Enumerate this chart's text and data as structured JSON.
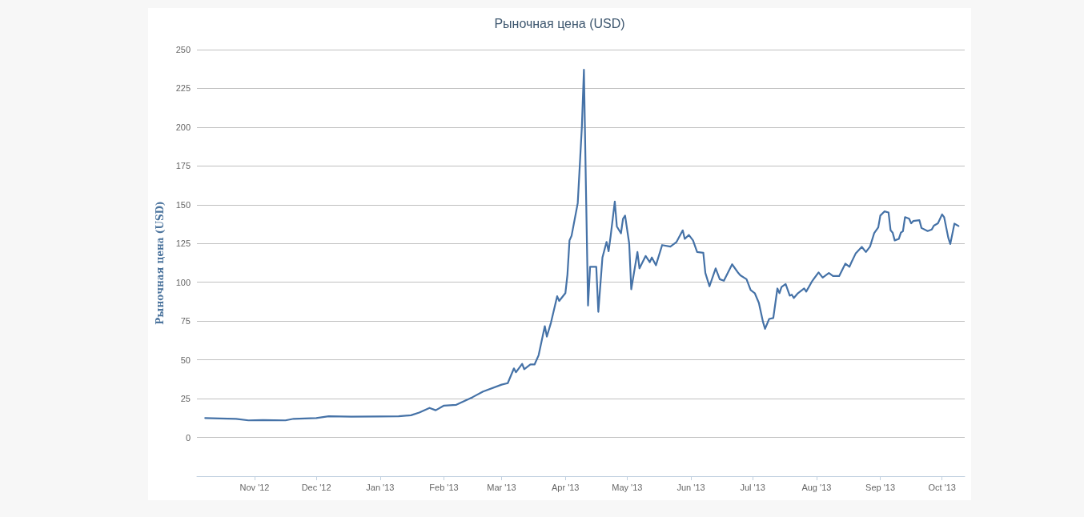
{
  "chart_data": {
    "type": "line",
    "title": "Рыночная цена (USD)",
    "ylabel": "Рыночная цена (USD)",
    "color": "#4572a7",
    "grid": "y",
    "line_style": "solid",
    "x": [
      "2012-10-08",
      "2012-10-15",
      "2012-10-23",
      "2012-10-29",
      "2012-11-05",
      "2012-11-16",
      "2012-11-20",
      "2012-12-01",
      "2012-12-07",
      "2012-12-18",
      "2013-01-01",
      "2013-01-10",
      "2013-01-16",
      "2013-01-20",
      "2013-01-25",
      "2013-01-28",
      "2013-02-01",
      "2013-02-07",
      "2013-02-15",
      "2013-02-20",
      "2013-03-01",
      "2013-03-04",
      "2013-03-07",
      "2013-03-08",
      "2013-03-11",
      "2013-03-12",
      "2013-03-15",
      "2013-03-17",
      "2013-03-19",
      "2013-03-22",
      "2013-03-23",
      "2013-03-25",
      "2013-03-28",
      "2013-03-29",
      "2013-04-01",
      "2013-04-02",
      "2013-04-03",
      "2013-04-04",
      "2013-04-07",
      "2013-04-09",
      "2013-04-10",
      "2013-04-11",
      "2013-04-12",
      "2013-04-13",
      "2013-04-16",
      "2013-04-17",
      "2013-04-19",
      "2013-04-21",
      "2013-04-22",
      "2013-04-23",
      "2013-04-25",
      "2013-04-26",
      "2013-04-28",
      "2013-04-29",
      "2013-04-30",
      "2013-05-02",
      "2013-05-03",
      "2013-05-06",
      "2013-05-07",
      "2013-05-10",
      "2013-05-12",
      "2013-05-13",
      "2013-05-15",
      "2013-05-18",
      "2013-05-22",
      "2013-05-25",
      "2013-05-28",
      "2013-05-29",
      "2013-05-31",
      "2013-06-02",
      "2013-06-04",
      "2013-06-07",
      "2013-06-08",
      "2013-06-10",
      "2013-06-13",
      "2013-06-15",
      "2013-06-17",
      "2013-06-21",
      "2013-06-24",
      "2013-06-25",
      "2013-06-28",
      "2013-06-30",
      "2013-07-02",
      "2013-07-04",
      "2013-07-06",
      "2013-07-07",
      "2013-07-09",
      "2013-07-11",
      "2013-07-13",
      "2013-07-14",
      "2013-07-15",
      "2013-07-17",
      "2013-07-19",
      "2013-07-20",
      "2013-07-21",
      "2013-07-23",
      "2013-07-26",
      "2013-07-27",
      "2013-07-30",
      "2013-08-02",
      "2013-08-04",
      "2013-08-07",
      "2013-08-09",
      "2013-08-12",
      "2013-08-15",
      "2013-08-17",
      "2013-08-18",
      "2013-08-20",
      "2013-08-23",
      "2013-08-25",
      "2013-08-27",
      "2013-08-29",
      "2013-08-31",
      "2013-09-01",
      "2013-09-03",
      "2013-09-05",
      "2013-09-06",
      "2013-09-07",
      "2013-09-08",
      "2013-09-10",
      "2013-09-11",
      "2013-09-12",
      "2013-09-13",
      "2013-09-15",
      "2013-09-16",
      "2013-09-17",
      "2013-09-20",
      "2013-09-21",
      "2013-09-24",
      "2013-09-26",
      "2013-09-27",
      "2013-09-29",
      "2013-10-01",
      "2013-10-02",
      "2013-10-04",
      "2013-10-05",
      "2013-10-07",
      "2013-10-09"
    ],
    "values": [
      12.5,
      12.2,
      12,
      11,
      11.2,
      11,
      12,
      12.5,
      13.6,
      13.4,
      13.5,
      13.6,
      14.3,
      16,
      19,
      17.5,
      20.5,
      21,
      26,
      29.6,
      34,
      35,
      44.5,
      42,
      47.4,
      44,
      47,
      47,
      53,
      71.7,
      65,
      74,
      91,
      88,
      93,
      105,
      127,
      130,
      151,
      200,
      237,
      160,
      85,
      110,
      110,
      81,
      116,
      126,
      120,
      130,
      152,
      136,
      131.6,
      141,
      143,
      125,
      95.5,
      119.5,
      109,
      117,
      113,
      116,
      111,
      124,
      123,
      126,
      133.5,
      128,
      130.5,
      127,
      119.5,
      119,
      106,
      97.4,
      109,
      102,
      101,
      111.6,
      106,
      104.5,
      102,
      95,
      93,
      86.7,
      74.5,
      70,
      76.4,
      77,
      96,
      93,
      97,
      98.9,
      91.4,
      92,
      89.9,
      93,
      96,
      94,
      101,
      106.4,
      103,
      106,
      104,
      104,
      112,
      110,
      113,
      118.5,
      122.8,
      119.5,
      123,
      131.6,
      135.4,
      143,
      145.7,
      145,
      133.5,
      132,
      127,
      128,
      132,
      133,
      142,
      141,
      138,
      139.5,
      140,
      135,
      133,
      134,
      136.5,
      138,
      143.8,
      142,
      128.8,
      124.7,
      137.8,
      136.3
    ],
    "xlim": [
      "2012-10-04",
      "2013-10-12"
    ],
    "xticks": [
      {
        "value": "2012-11-01",
        "label": "Nov '12"
      },
      {
        "value": "2012-12-01",
        "label": "Dec '12"
      },
      {
        "value": "2013-01-01",
        "label": "Jan '13"
      },
      {
        "value": "2013-02-01",
        "label": "Feb '13"
      },
      {
        "value": "2013-03-01",
        "label": "Mar '13"
      },
      {
        "value": "2013-04-01",
        "label": "Apr '13"
      },
      {
        "value": "2013-05-01",
        "label": "May '13"
      },
      {
        "value": "2013-06-01",
        "label": "Jun '13"
      },
      {
        "value": "2013-07-01",
        "label": "Jul '13"
      },
      {
        "value": "2013-08-01",
        "label": "Aug '13"
      },
      {
        "value": "2013-09-01",
        "label": "Sep '13"
      },
      {
        "value": "2013-10-01",
        "label": "Oct '13"
      }
    ],
    "ylim": [
      -25,
      250
    ],
    "yticks": [
      0,
      25,
      50,
      75,
      100,
      125,
      150,
      175,
      200,
      225,
      250
    ]
  }
}
